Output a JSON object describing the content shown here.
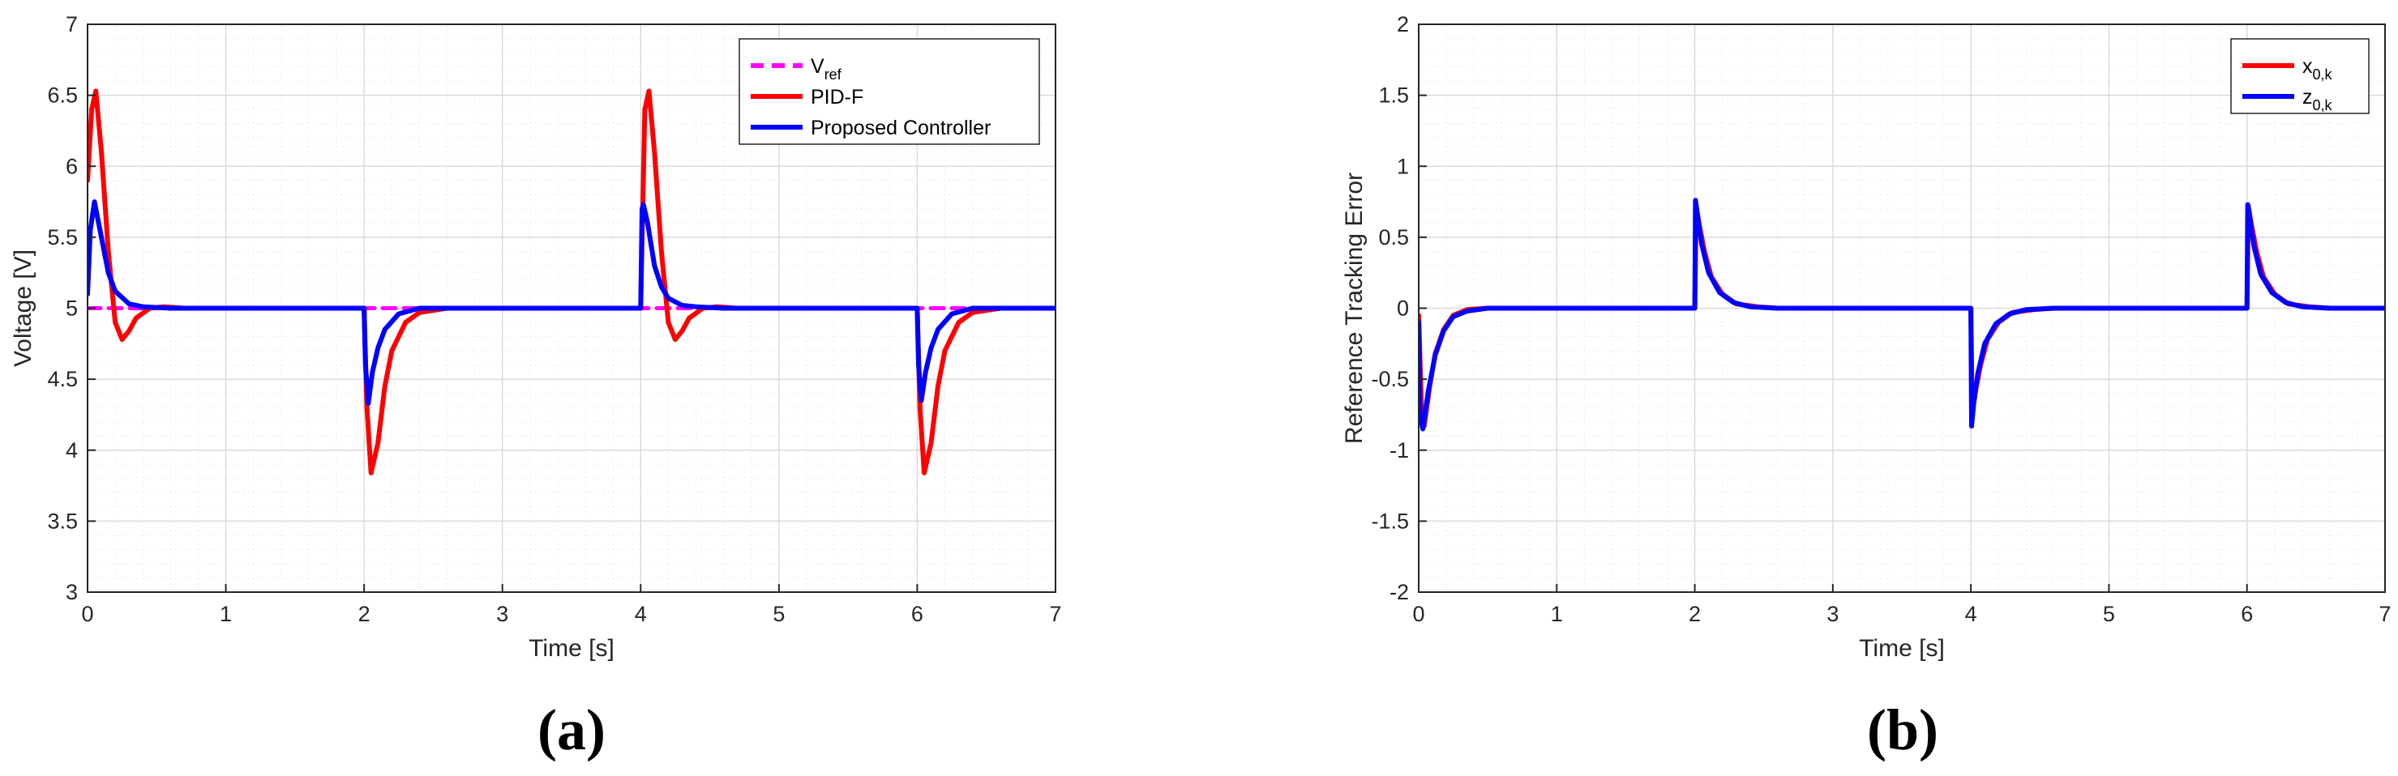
{
  "chart_data": [
    {
      "type": "line",
      "panel_label": "(a)",
      "xlabel": "Time [s]",
      "ylabel": "Voltage [V]",
      "xlim": [
        0,
        7
      ],
      "ylim": [
        3,
        7
      ],
      "xticks": [
        0,
        1,
        2,
        3,
        4,
        5,
        6,
        7
      ],
      "xtick_labels": [
        "0",
        "1",
        "2",
        "3",
        "4",
        "5",
        "6",
        "7"
      ],
      "yticks": [
        3,
        3.5,
        4,
        4.5,
        5,
        5.5,
        6,
        6.5,
        7
      ],
      "ytick_labels": [
        "3",
        "3.5",
        "4",
        "4.5",
        "5",
        "5.5",
        "6",
        "6.5",
        "7"
      ],
      "grid": true,
      "legend_position": "top-right",
      "series": [
        {
          "name": "V_ref",
          "label_main": "V",
          "label_sub": "ref",
          "color": "#ff00ff",
          "style": "dashed",
          "x": [
            0,
            7
          ],
          "y": [
            5,
            5
          ]
        },
        {
          "name": "PID-F",
          "label_main": "PID-F",
          "label_sub": "",
          "color": "#ff0000",
          "style": "solid",
          "x": [
            0,
            0.03,
            0.06,
            0.1,
            0.15,
            0.2,
            0.25,
            0.3,
            0.35,
            0.45,
            0.55,
            0.7,
            2,
            2.02,
            2.05,
            2.1,
            2.15,
            2.2,
            2.3,
            2.4,
            2.6,
            2.8,
            4,
            4.03,
            4.06,
            4.1,
            4.15,
            4.2,
            4.25,
            4.3,
            4.35,
            4.45,
            4.55,
            4.7,
            6,
            6.02,
            6.05,
            6.1,
            6.15,
            6.2,
            6.3,
            6.4,
            6.6,
            6.8,
            7
          ],
          "y": [
            5.9,
            6.4,
            6.53,
            6.1,
            5.4,
            4.9,
            4.78,
            4.84,
            4.93,
            5.0,
            5.01,
            5.0,
            5.0,
            4.3,
            3.84,
            4.05,
            4.45,
            4.7,
            4.9,
            4.97,
            5.0,
            5.0,
            5.0,
            6.4,
            6.53,
            6.1,
            5.4,
            4.9,
            4.78,
            4.84,
            4.93,
            5.0,
            5.01,
            5.0,
            5.0,
            4.3,
            3.84,
            4.05,
            4.45,
            4.7,
            4.9,
            4.97,
            5.0,
            5.0,
            5.0
          ]
        },
        {
          "name": "Proposed Controller",
          "label_main": "Proposed Controller",
          "label_sub": "",
          "color": "#0000ff",
          "style": "solid",
          "x": [
            0,
            0.02,
            0.05,
            0.1,
            0.15,
            0.2,
            0.3,
            0.4,
            0.6,
            2,
            2.01,
            2.03,
            2.06,
            2.1,
            2.15,
            2.25,
            2.4,
            2.6,
            4,
            4.01,
            4.02,
            4.05,
            4.1,
            4.15,
            4.2,
            4.3,
            4.4,
            4.6,
            6,
            6.01,
            6.03,
            6.06,
            6.1,
            6.15,
            6.25,
            6.4,
            6.6,
            7
          ],
          "y": [
            5.1,
            5.55,
            5.75,
            5.5,
            5.25,
            5.12,
            5.03,
            5.01,
            5.0,
            5.0,
            4.6,
            4.33,
            4.55,
            4.72,
            4.85,
            4.96,
            5.0,
            5.0,
            5.0,
            5.7,
            5.73,
            5.6,
            5.3,
            5.15,
            5.07,
            5.02,
            5.01,
            5.0,
            5.0,
            4.6,
            4.35,
            4.55,
            4.72,
            4.85,
            4.96,
            5.0,
            5.0,
            5.0
          ]
        }
      ]
    },
    {
      "type": "line",
      "panel_label": "(b)",
      "xlabel": "Time [s]",
      "ylabel": "Reference Tracking Error",
      "xlim": [
        0,
        7
      ],
      "ylim": [
        -2,
        2
      ],
      "xticks": [
        0,
        1,
        2,
        3,
        4,
        5,
        6,
        7
      ],
      "xtick_labels": [
        "0",
        "1",
        "2",
        "3",
        "4",
        "5",
        "6",
        "7"
      ],
      "yticks": [
        -2,
        -1.5,
        -1,
        -0.5,
        0,
        0.5,
        1,
        1.5,
        2
      ],
      "ytick_labels": [
        "-2",
        "-1.5",
        "-1",
        "-0.5",
        "0",
        "0.5",
        "1",
        "1.5",
        "2"
      ],
      "grid": true,
      "legend_position": "top-right",
      "series": [
        {
          "name": "x_0,k",
          "label_main": "x",
          "label_sub": "0,k",
          "color": "#ff0000",
          "style": "solid",
          "x": [
            0,
            0.02,
            0.04,
            0.08,
            0.12,
            0.18,
            0.25,
            0.35,
            0.5,
            2,
            2.01,
            2.03,
            2.07,
            2.12,
            2.2,
            2.3,
            2.45,
            2.6,
            4,
            4.01,
            4.03,
            4.07,
            4.12,
            4.2,
            4.3,
            4.45,
            4.6,
            6,
            6.01,
            6.03,
            6.07,
            6.12,
            6.2,
            6.3,
            6.45,
            6.6,
            7
          ],
          "y": [
            -0.05,
            -0.7,
            -0.83,
            -0.55,
            -0.32,
            -0.15,
            -0.05,
            -0.01,
            0,
            0,
            0.72,
            0.6,
            0.4,
            0.22,
            0.1,
            0.03,
            0.01,
            0,
            0,
            -0.72,
            -0.6,
            -0.4,
            -0.22,
            -0.1,
            -0.03,
            -0.01,
            0,
            0,
            0.72,
            0.6,
            0.4,
            0.22,
            0.1,
            0.03,
            0.01,
            0,
            0
          ]
        },
        {
          "name": "z_0,k",
          "label_main": "z",
          "label_sub": "0,k",
          "color": "#0000ff",
          "style": "solid",
          "x": [
            0,
            0.01,
            0.03,
            0.07,
            0.12,
            0.18,
            0.25,
            0.35,
            0.5,
            2,
            2.005,
            2.02,
            2.05,
            2.1,
            2.18,
            2.28,
            2.4,
            2.6,
            4,
            4.005,
            4.02,
            4.05,
            4.1,
            4.18,
            4.28,
            4.4,
            4.6,
            6,
            6.005,
            6.02,
            6.05,
            6.1,
            6.18,
            6.28,
            6.4,
            6.6,
            7
          ],
          "y": [
            -0.1,
            -0.75,
            -0.85,
            -0.58,
            -0.33,
            -0.16,
            -0.06,
            -0.02,
            0,
            0,
            0.76,
            0.65,
            0.45,
            0.25,
            0.11,
            0.04,
            0.01,
            0,
            0,
            -0.83,
            -0.68,
            -0.46,
            -0.25,
            -0.11,
            -0.04,
            -0.01,
            0,
            0,
            0.73,
            0.64,
            0.44,
            0.24,
            0.11,
            0.04,
            0.01,
            0,
            0
          ]
        }
      ]
    }
  ]
}
